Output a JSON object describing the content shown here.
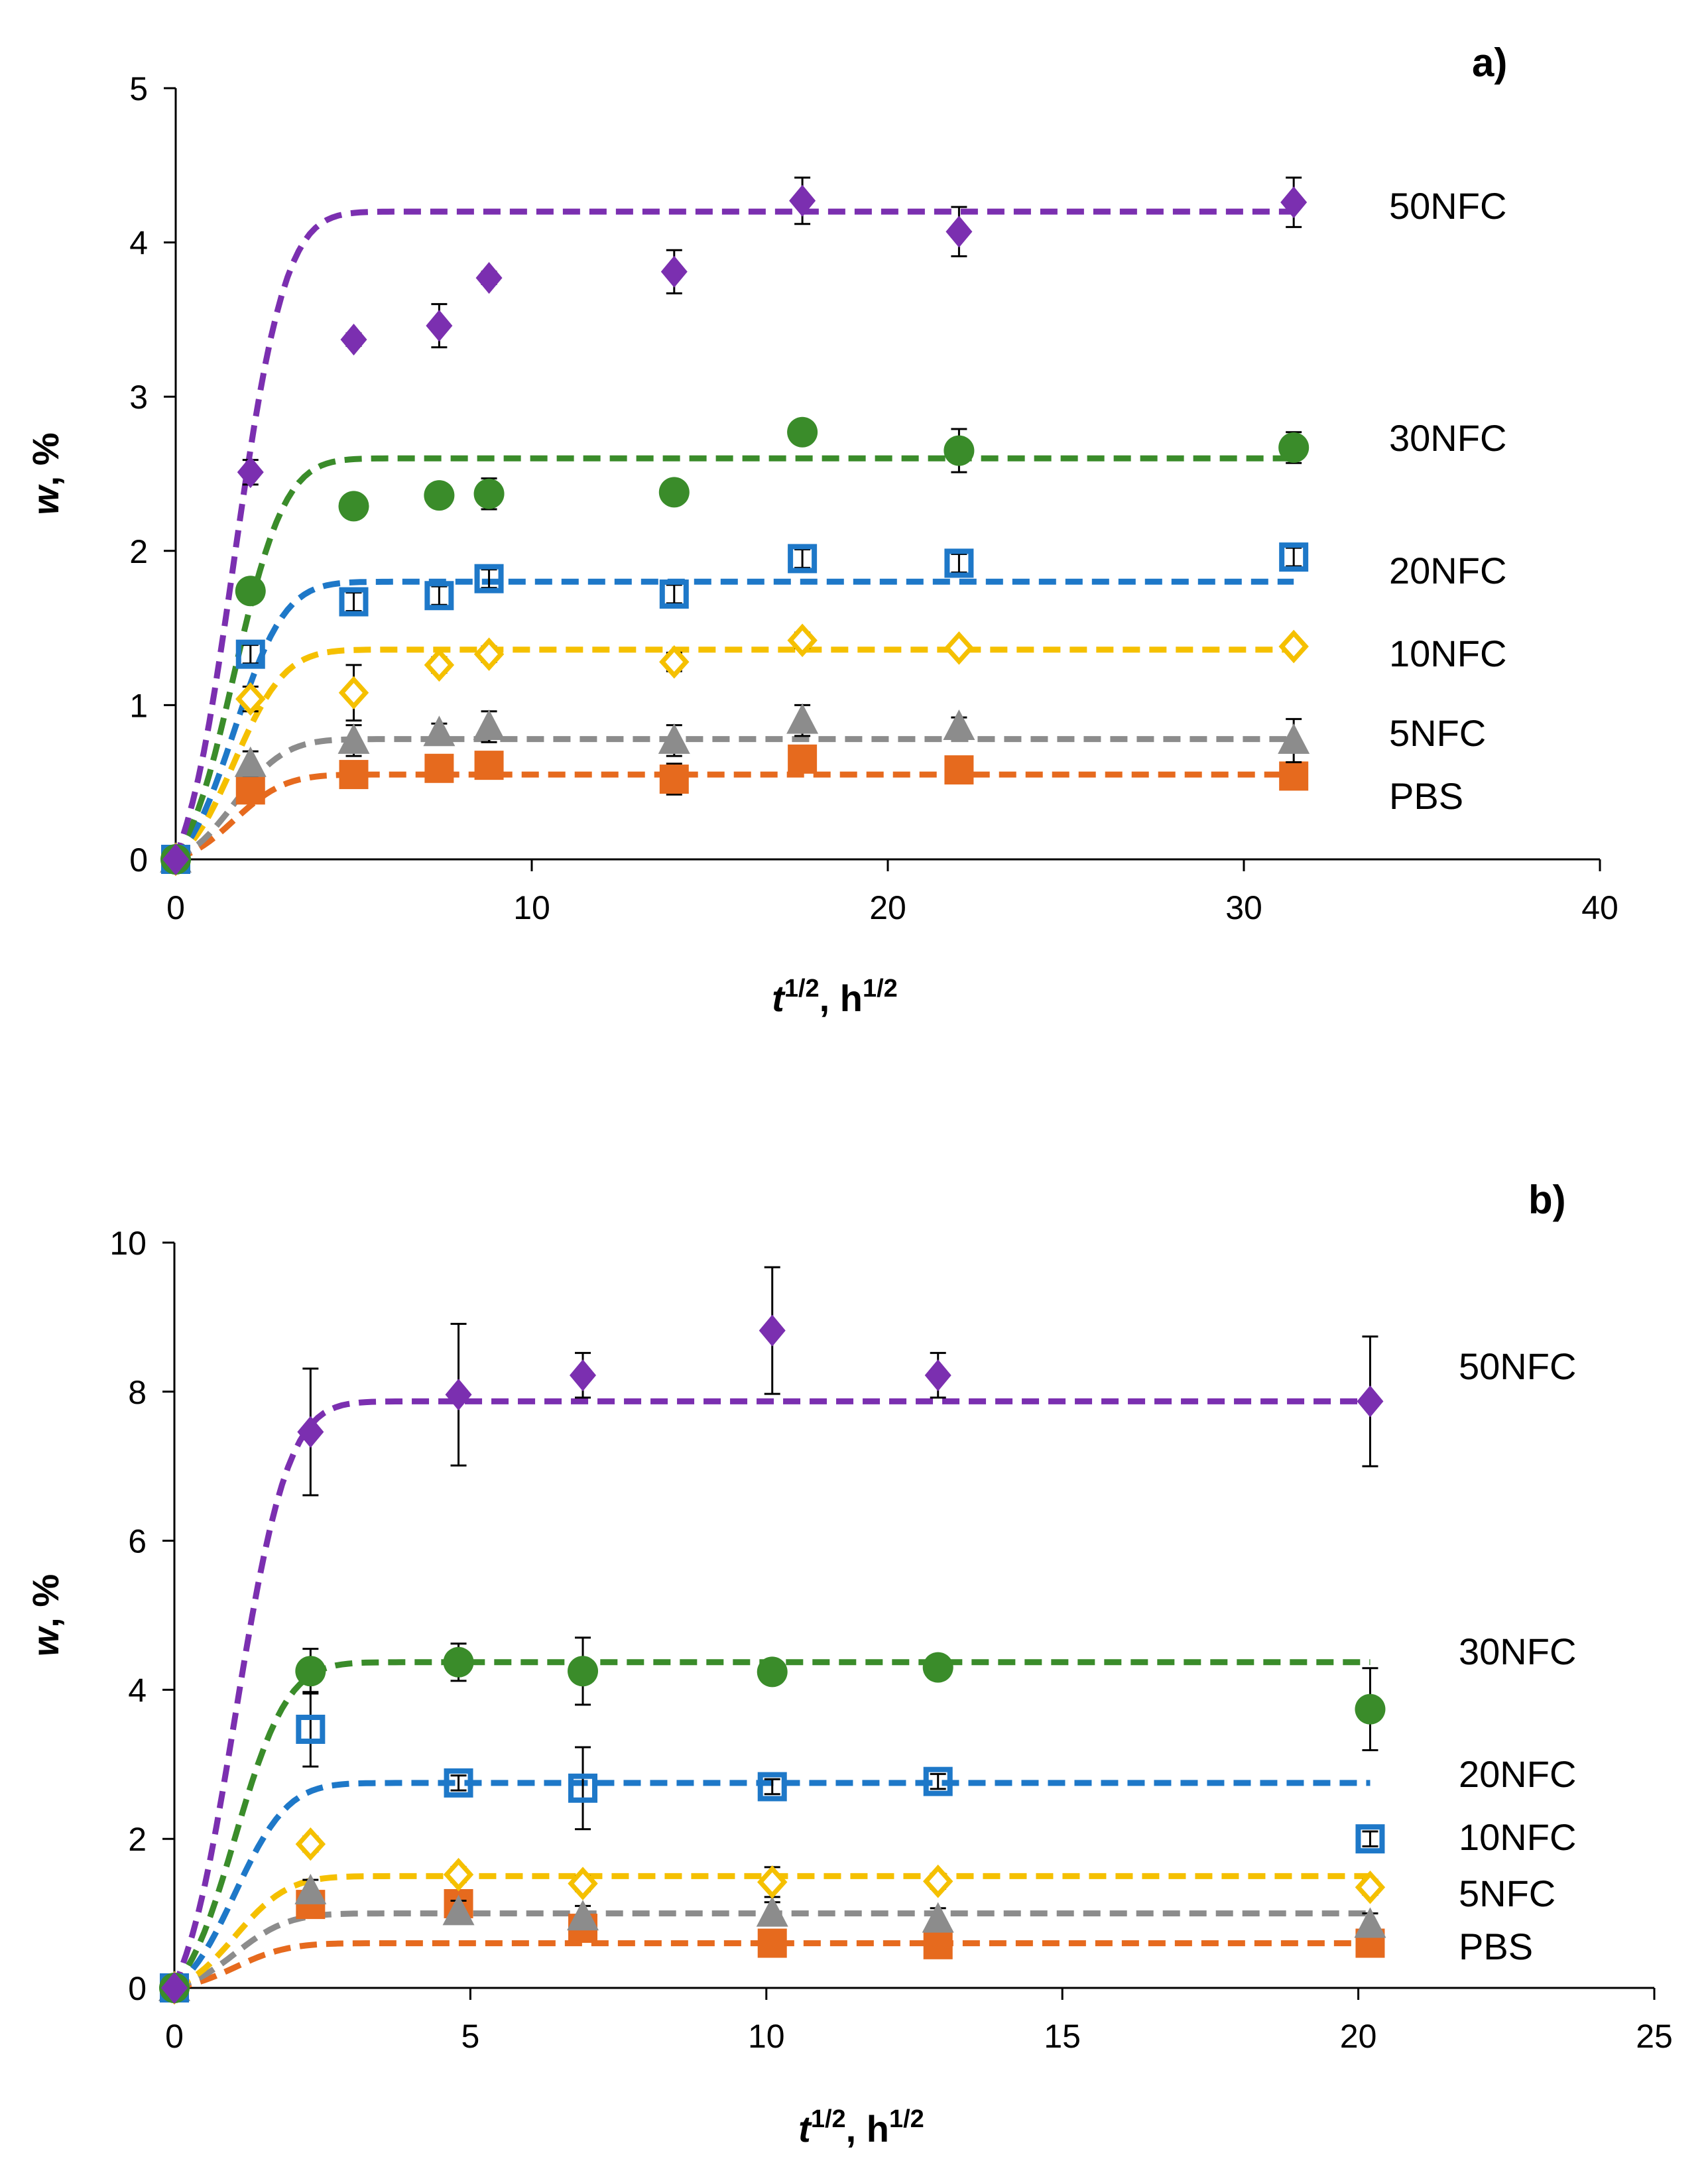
{
  "chart_data": [
    {
      "type": "scatter",
      "panel_label": "a)",
      "xlabel": {
        "main": "t",
        "sup1": "1/2",
        "sep": ", h",
        "sup2": "1/2"
      },
      "ylabel": {
        "main": "w",
        "rest": ", %"
      },
      "xlim": [
        0,
        40
      ],
      "ylim": [
        0,
        5
      ],
      "xticks": [
        "0",
        "10",
        "20",
        "30",
        "40"
      ],
      "yticks": [
        "0",
        "1",
        "2",
        "3",
        "4",
        "5"
      ],
      "x": [
        0,
        2.1,
        5,
        7.4,
        8.8,
        14,
        17.6,
        22,
        31.4
      ],
      "fit_end": 31.4,
      "series": [
        {
          "name": "PBS",
          "color": "#E66A1E",
          "marker": "square-filled",
          "values": [
            0,
            0.45,
            0.55,
            0.59,
            0.61,
            0.52,
            0.65,
            0.58,
            0.54
          ],
          "errors": [
            0,
            0.05,
            0.05,
            0.05,
            0.05,
            0.1,
            0.08,
            0.05,
            0.08
          ],
          "fit_plateau": 0.55
        },
        {
          "name": "5NFC",
          "color": "#8C8C8C",
          "marker": "triangle-filled",
          "values": [
            0,
            0.62,
            0.77,
            0.82,
            0.86,
            0.77,
            0.9,
            0.86,
            0.77
          ],
          "errors": [
            0,
            0.08,
            0.1,
            0.06,
            0.1,
            0.1,
            0.1,
            0.06,
            0.14
          ],
          "fit_plateau": 0.78
        },
        {
          "name": "10NFC",
          "color": "#F5C000",
          "marker": "diamond-open",
          "values": [
            0,
            1.04,
            1.08,
            1.26,
            1.33,
            1.28,
            1.42,
            1.37,
            1.38
          ],
          "errors": [
            0,
            0.08,
            0.18,
            0.05,
            0.05,
            0.06,
            0.05,
            0.04,
            0.04
          ],
          "fit_plateau": 1.36
        },
        {
          "name": "20NFC",
          "color": "#1E78C8",
          "marker": "square-open",
          "values": [
            0,
            1.33,
            1.67,
            1.71,
            1.82,
            1.72,
            1.95,
            1.92,
            1.96
          ],
          "errors": [
            0,
            0.06,
            0.06,
            0.06,
            0.06,
            0.06,
            0.06,
            0.06,
            0.06
          ],
          "fit_plateau": 1.8
        },
        {
          "name": "30NFC",
          "color": "#3A8C2A",
          "marker": "circle-filled",
          "values": [
            0,
            1.74,
            2.29,
            2.36,
            2.37,
            2.38,
            2.77,
            2.65,
            2.67
          ],
          "errors": [
            0,
            0.05,
            0.05,
            0.05,
            0.1,
            0.05,
            0.05,
            0.14,
            0.1
          ],
          "fit_plateau": 2.6
        },
        {
          "name": "50NFC",
          "color": "#7B2FB0",
          "marker": "diamond-filled",
          "values": [
            0,
            2.51,
            3.37,
            3.46,
            3.77,
            3.81,
            4.27,
            4.07,
            4.26
          ],
          "errors": [
            0,
            0.08,
            0.04,
            0.14,
            0.04,
            0.14,
            0.15,
            0.16,
            0.16
          ],
          "fit_plateau": 4.2
        }
      ]
    },
    {
      "type": "scatter",
      "panel_label": "b)",
      "xlabel": {
        "main": "t",
        "sup1": "1/2",
        "sep": ", h",
        "sup2": "1/2"
      },
      "ylabel": {
        "main": "w",
        "rest": ", %"
      },
      "xlim": [
        0,
        25
      ],
      "ylim": [
        0,
        10
      ],
      "xticks": [
        "0",
        "5",
        "10",
        "15",
        "20",
        "25"
      ],
      "yticks": [
        "0",
        "2",
        "4",
        "6",
        "8",
        "10"
      ],
      "x": [
        0,
        2.3,
        4.8,
        6.9,
        10.1,
        12.9,
        20.2
      ],
      "fit_end": 20.2,
      "series": [
        {
          "name": "PBS",
          "color": "#E66A1E",
          "marker": "square-filled",
          "values": [
            0,
            1.12,
            1.13,
            0.8,
            0.6,
            0.58,
            0.6
          ],
          "errors": [
            0,
            0.1,
            0.1,
            0.1,
            0.1,
            0.1,
            0.1
          ],
          "fit_plateau": 0.6
        },
        {
          "name": "5NFC",
          "color": "#8C8C8C",
          "marker": "triangle-filled",
          "values": [
            0,
            1.3,
            1.02,
            0.95,
            1.0,
            0.92,
            0.85
          ],
          "errors": [
            0,
            0.15,
            0.15,
            0.15,
            0.15,
            0.15,
            0.15
          ],
          "fit_plateau": 1.0
        },
        {
          "name": "10NFC",
          "color": "#F5C000",
          "marker": "diamond-open",
          "values": [
            0,
            1.93,
            1.52,
            1.4,
            1.42,
            1.43,
            1.35
          ],
          "errors": [
            0,
            0.1,
            0.1,
            0.1,
            0.2,
            0.1,
            0.1
          ],
          "fit_plateau": 1.5
        },
        {
          "name": "20NFC",
          "color": "#1E78C8",
          "marker": "square-open",
          "values": [
            0,
            3.47,
            2.75,
            2.68,
            2.7,
            2.77,
            2.0
          ],
          "errors": [
            0,
            0.5,
            0.1,
            0.55,
            0.1,
            0.1,
            0.1
          ],
          "fit_plateau": 2.75
        },
        {
          "name": "30NFC",
          "color": "#3A8C2A",
          "marker": "circle-filled",
          "values": [
            0,
            4.25,
            4.37,
            4.25,
            4.24,
            4.3,
            3.74
          ],
          "errors": [
            0,
            0.3,
            0.25,
            0.45,
            0.1,
            0.1,
            0.55
          ],
          "fit_plateau": 4.37
        },
        {
          "name": "50NFC",
          "color": "#7B2FB0",
          "marker": "diamond-filled",
          "values": [
            0,
            7.46,
            7.96,
            8.22,
            8.82,
            8.22,
            7.87
          ],
          "errors": [
            0,
            0.85,
            0.95,
            0.3,
            0.85,
            0.3,
            0.87
          ],
          "fit_plateau": 7.87
        }
      ]
    }
  ]
}
